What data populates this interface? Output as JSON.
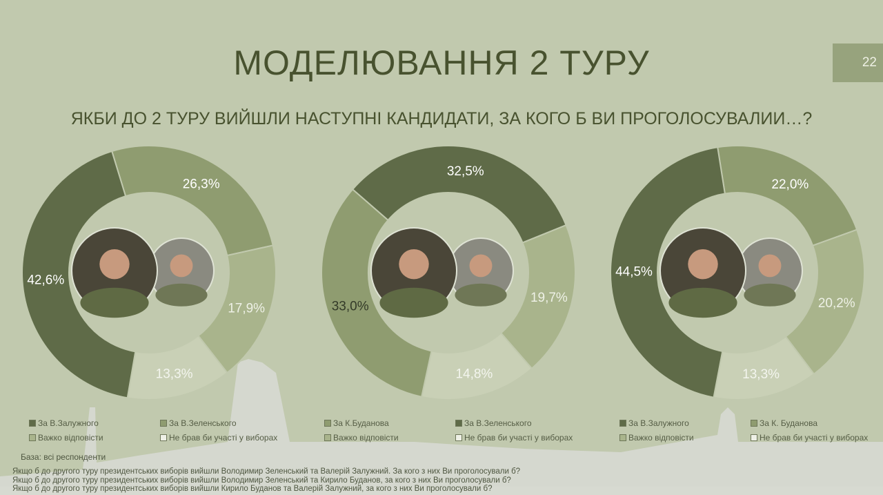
{
  "title": "МОДЕЛЮВАННЯ 2 ТУРУ",
  "page_number": "22",
  "subtitle": "ЯКБИ ДО 2 ТУРУ ВИЙШЛИ НАСТУПНІ КАНДИДАТИ, ЗА КОГО Б ВИ ПРОГОЛОСУВАЛИИ…?",
  "colors": {
    "dark": "#5f6b48",
    "mid": "#8f9c70",
    "light": "#a9b48c",
    "lightest": "#c9d0b6",
    "background": "#c1c9ae"
  },
  "chart_data": [
    {
      "type": "pie",
      "donut": true,
      "photos": [
        "В.Залужний",
        "В.Зеленський"
      ],
      "categories": [
        "За В.Зеленського",
        "Важко відповісти",
        "Не брав би участі у виборах",
        "За В.Залужного"
      ],
      "values": [
        26.3,
        17.9,
        13.3,
        42.6
      ],
      "labels": [
        "26,3%",
        "17,9%",
        "13,3%",
        "42,6%"
      ],
      "colors": [
        "mid",
        "light",
        "lightest",
        "dark"
      ],
      "legend": [
        "За В.Залужного",
        "За В.Зеленського",
        "Важко відповісти",
        "Не брав би участі у виборах"
      ],
      "legend_colors": [
        "dark",
        "mid",
        "light",
        "lightest"
      ]
    },
    {
      "type": "pie",
      "donut": true,
      "photos": [
        "К.Буданов",
        "В.Зеленський"
      ],
      "categories": [
        "За В.Зеленського",
        "Важко відповісти",
        "Не брав би участі у виборах",
        "За К.Буданова"
      ],
      "values": [
        32.5,
        19.7,
        14.8,
        33.0
      ],
      "labels": [
        "32,5%",
        "19,7%",
        "14,8%",
        "33,0%"
      ],
      "colors": [
        "dark",
        "light",
        "lightest",
        "mid"
      ],
      "legend": [
        "За К.Буданова",
        "За В.Зеленського",
        "Важко відповісти",
        "Не брав би участі у виборах"
      ],
      "legend_colors": [
        "mid",
        "dark",
        "light",
        "lightest"
      ]
    },
    {
      "type": "pie",
      "donut": true,
      "photos": [
        "В.Залужний",
        "К.Буданов"
      ],
      "categories": [
        "За К. Буданова",
        "Важко відповісти",
        "Не брав би участі у виборах",
        "За В.Залужного"
      ],
      "values": [
        22.0,
        20.2,
        13.3,
        44.5
      ],
      "labels": [
        "22,0%",
        "20,2%",
        "13,3%",
        "44,5%"
      ],
      "colors": [
        "mid",
        "light",
        "lightest",
        "dark"
      ],
      "legend": [
        "За В.Залужного",
        "За К. Буданова",
        "Важко відповісти",
        "Не брав би участі у виборах"
      ],
      "legend_colors": [
        "dark",
        "mid",
        "light",
        "lightest"
      ]
    }
  ],
  "base": "База: всі респонденти",
  "notes": [
    "Якщо б до другого туру президентських виборів вийшли Володимир Зеленський та Валерій Залужний. За кого з них Ви проголосували б?",
    "Якщо б до другого туру президентських виборів вийшли Володимир Зеленський та Кирило Буданов, за кого з них Ви проголосували б?",
    "Якщо б до другого туру президентських виборів вийшли Кирило Буданов та Валерій Залужний, за кого з них Ви проголосували б?"
  ]
}
